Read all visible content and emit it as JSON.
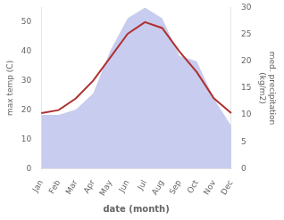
{
  "chart_data": {
    "type": "line",
    "xlabel": "date (month)",
    "ylabel": "max temp (C)",
    "y2label": "med. precipitation\n(kg/m2)",
    "categories": [
      "Jan",
      "Feb",
      "Mar",
      "Apr",
      "May",
      "Jun",
      "Jul",
      "Aug",
      "Sep",
      "Oct",
      "Nov",
      "Dec"
    ],
    "series": [
      {
        "type": "area",
        "axis": "y2",
        "color": "#c8ccee",
        "values": [
          10,
          10,
          11,
          14,
          22,
          28,
          30,
          28,
          21,
          20,
          13,
          8
        ]
      },
      {
        "type": "line",
        "color": "#b03030",
        "values": [
          19,
          20,
          24,
          30,
          38,
          46,
          50,
          48,
          40,
          33,
          24,
          19
        ]
      }
    ],
    "ylim": [
      0,
      55
    ],
    "yticks": [
      0,
      10,
      20,
      30,
      40,
      50
    ],
    "y2lim": [
      0,
      30
    ],
    "y2ticks": [
      0,
      5,
      10,
      15,
      20,
      25,
      30
    ],
    "grid": false
  }
}
